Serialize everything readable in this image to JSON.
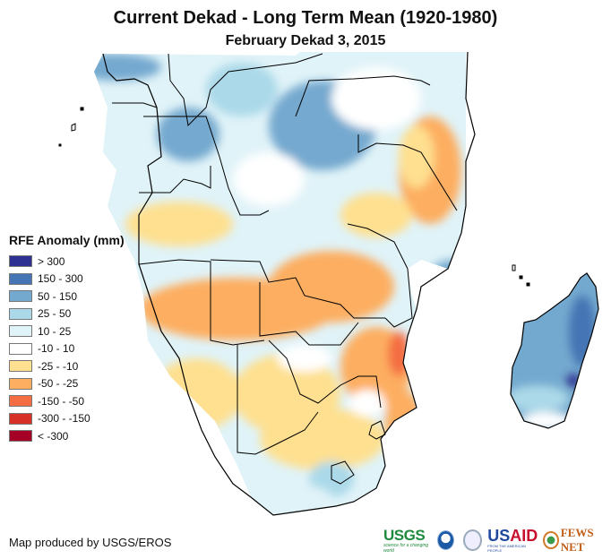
{
  "header": {
    "title": "Current Dekad - Long Term Mean (1920-1980)",
    "subtitle": "February Dekad 3, 2015"
  },
  "legend": {
    "title": "RFE Anomaly (mm)",
    "items": [
      {
        "label": "> 300",
        "color": "#2e3192"
      },
      {
        "label": "150 - 300",
        "color": "#4575b4"
      },
      {
        "label": "50 - 150",
        "color": "#74a9cf"
      },
      {
        "label": "25 - 50",
        "color": "#abd9e9"
      },
      {
        "label": "10 - 25",
        "color": "#e0f3f8"
      },
      {
        "label": "-10 - 10",
        "color": "#ffffff"
      },
      {
        "label": "-25 - -10",
        "color": "#fee090"
      },
      {
        "label": "-50 - -25",
        "color": "#fdae61"
      },
      {
        "label": "-150 - -50",
        "color": "#f46d43"
      },
      {
        "label": "-300 - -150",
        "color": "#d73027"
      },
      {
        "label": "< -300",
        "color": "#a50026"
      }
    ]
  },
  "credit": "Map produced by USGS/EROS",
  "logos": {
    "usgs": "USGS",
    "usgs_tagline": "science for a changing world",
    "noaa": "NOAA",
    "usaid_us": "US",
    "usaid_aid": "AID",
    "usaid_tagline": "FROM THE AMERICAN PEOPLE",
    "fews": "FEWS NET"
  },
  "map": {
    "region": "Central and Southern Africa with Madagascar",
    "variable": "Rainfall Estimate (RFE) anomaly",
    "period": "February Dekad 3, 2015"
  }
}
